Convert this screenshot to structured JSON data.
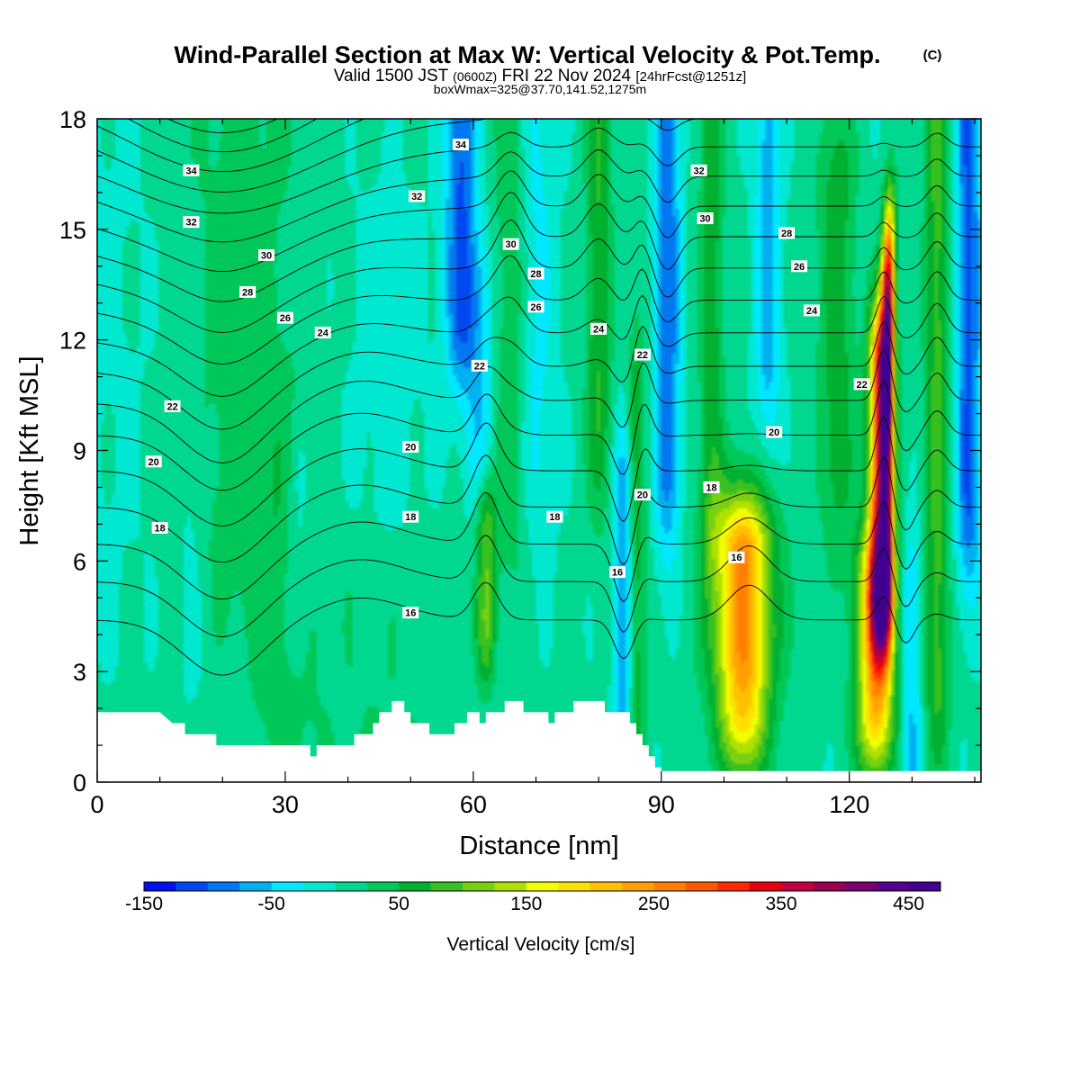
{
  "title": {
    "main": "Wind-Parallel Section at Max W: Vertical Velocity & Pot.Temp.",
    "copyright": "(C)",
    "valid_prefix": "Valid 1500 JST",
    "valid_z": "(0600Z)",
    "valid_date": "FRI 22 Nov 2024",
    "forecast": "[24hrFcst@1251z]",
    "box": "boxWmax=325@37.70,141.52,1275m"
  },
  "chart_data": {
    "type": "heatmap",
    "xlabel": "Distance [nm]",
    "ylabel": "Height [Kft MSL]",
    "xlim": [
      0,
      141
    ],
    "ylim": [
      0,
      18
    ],
    "xticks": [
      0,
      30,
      60,
      90,
      120
    ],
    "yticks": [
      0,
      3,
      6,
      9,
      12,
      15,
      18
    ],
    "grid": false,
    "colorbar": {
      "label": "Vertical Velocity [cm/s]",
      "min": -150,
      "max": 475,
      "step": 25,
      "tick_values": [
        -150,
        -50,
        50,
        150,
        250,
        350,
        450
      ],
      "tick_labels": [
        "-150",
        "-50",
        "50",
        "150",
        "250",
        "350",
        "450"
      ],
      "colors": [
        "#0010f0",
        "#0048f0",
        "#0078f0",
        "#00b0f0",
        "#00e8ff",
        "#00e8d0",
        "#00d890",
        "#00c858",
        "#00b030",
        "#38c020",
        "#78d010",
        "#b0e000",
        "#f0ff00",
        "#ffe000",
        "#ffc000",
        "#ffa000",
        "#ff8000",
        "#ff5800",
        "#ff2800",
        "#e80010",
        "#c00040",
        "#980050",
        "#780070",
        "#580090",
        "#400090"
      ]
    },
    "w_features": [
      {
        "x": 2,
        "z0": 9,
        "z1": 18,
        "w": -10,
        "sx": 10,
        "sz": 6
      },
      {
        "x": 23,
        "z0": 8,
        "z1": 18,
        "w": 30,
        "sx": 10,
        "sz": 5
      },
      {
        "x": 46,
        "z0": 6,
        "z1": 13,
        "w": -15,
        "sx": 7,
        "sz": 4
      },
      {
        "x": 30,
        "z0": 2,
        "z1": 8,
        "w": 25,
        "sx": 6,
        "sz": 3
      },
      {
        "x": 46,
        "z0": 1,
        "z1": 5,
        "w": 25,
        "sx": 10,
        "sz": 2
      },
      {
        "x": 15,
        "z0": 4,
        "z1": 8,
        "w": -20,
        "sx": 2,
        "sz": 2
      },
      {
        "x": 32,
        "z0": 5,
        "z1": 8,
        "w": -40,
        "sx": 2,
        "sz": 2
      },
      {
        "x": 58,
        "z0": 13,
        "z1": 18,
        "w": -110,
        "sx": 2.5,
        "sz": 2.5
      },
      {
        "x": 61,
        "z0": 9,
        "z1": 13,
        "w": -50,
        "sx": 2.2,
        "sz": 2
      },
      {
        "x": 62,
        "z0": 4,
        "z1": 7,
        "w": 90,
        "sx": 1.6,
        "sz": 1.5
      },
      {
        "x": 66,
        "z0": 8,
        "z1": 18,
        "w": 40,
        "sx": 3,
        "sz": 3
      },
      {
        "x": 70,
        "z0": 9,
        "z1": 18,
        "w": -40,
        "sx": 3,
        "sz": 3
      },
      {
        "x": 80,
        "z0": 10,
        "z1": 18,
        "w": 70,
        "sx": 2,
        "sz": 3
      },
      {
        "x": 84,
        "z0": 2,
        "z1": 8,
        "w": -80,
        "sx": 1.5,
        "sz": 2
      },
      {
        "x": 86,
        "z0": 2,
        "z1": 10,
        "w": 60,
        "sx": 1.5,
        "sz": 3
      },
      {
        "x": 91,
        "z0": 9,
        "z1": 18,
        "w": -100,
        "sx": 2,
        "sz": 3
      },
      {
        "x": 98,
        "z0": 8,
        "z1": 18,
        "w": 60,
        "sx": 2,
        "sz": 3
      },
      {
        "x": 103,
        "z0": 2,
        "z1": 6,
        "w": 180,
        "sx": 4,
        "sz": 2
      },
      {
        "x": 103,
        "z0": 4,
        "z1": 6,
        "w": 70,
        "sx": 6,
        "sz": 2
      },
      {
        "x": 107,
        "z0": 12,
        "z1": 18,
        "w": -70,
        "sx": 2,
        "sz": 3
      },
      {
        "x": 118,
        "z0": 9,
        "z1": 16,
        "w": 60,
        "sx": 3,
        "sz": 3
      },
      {
        "x": 124,
        "z0": 2,
        "z1": 5,
        "w": 200,
        "sx": 3,
        "sz": 2
      },
      {
        "x": 125,
        "z0": 5,
        "z1": 11,
        "w": 330,
        "sx": 1.8,
        "sz": 2
      },
      {
        "x": 126,
        "z0": 6,
        "z1": 9,
        "w": 200,
        "sx": 1.0,
        "sz": 2
      },
      {
        "x": 126,
        "z0": 11,
        "z1": 13.5,
        "w": 220,
        "sx": 1.0,
        "sz": 1.5
      },
      {
        "x": 126.5,
        "z0": 13,
        "z1": 15,
        "w": 150,
        "sx": 1.0,
        "sz": 1.5
      },
      {
        "x": 130,
        "z0": 0.5,
        "z1": 5,
        "w": -60,
        "sx": 1.5,
        "sz": 2
      },
      {
        "x": 134,
        "z0": 3,
        "z1": 18,
        "w": 80,
        "sx": 2,
        "sz": 3
      },
      {
        "x": 139,
        "z0": 8,
        "z1": 18,
        "w": -110,
        "sx": 2,
        "sz": 3
      }
    ],
    "terrain_kft": [
      [
        0,
        1.9
      ],
      [
        10,
        1.9
      ],
      [
        12,
        1.6
      ],
      [
        14,
        1.6
      ],
      [
        14,
        1.3
      ],
      [
        19,
        1.3
      ],
      [
        19,
        1.0
      ],
      [
        34,
        1.0
      ],
      [
        34,
        0.7
      ],
      [
        35,
        0.7
      ],
      [
        35,
        1.0
      ],
      [
        41,
        1.0
      ],
      [
        41,
        1.3
      ],
      [
        44,
        1.3
      ],
      [
        44,
        1.6
      ],
      [
        45,
        1.6
      ],
      [
        45,
        1.9
      ],
      [
        47,
        1.9
      ],
      [
        47,
        2.2
      ],
      [
        49,
        2.2
      ],
      [
        49,
        1.9
      ],
      [
        50,
        1.9
      ],
      [
        50,
        1.6
      ],
      [
        53,
        1.6
      ],
      [
        53,
        1.3
      ],
      [
        57,
        1.3
      ],
      [
        57,
        1.6
      ],
      [
        59,
        1.6
      ],
      [
        59,
        1.9
      ],
      [
        61,
        1.9
      ],
      [
        61,
        1.6
      ],
      [
        62,
        1.6
      ],
      [
        62,
        1.9
      ],
      [
        65,
        1.9
      ],
      [
        65,
        2.2
      ],
      [
        68,
        2.2
      ],
      [
        68,
        1.9
      ],
      [
        72,
        1.9
      ],
      [
        72,
        1.6
      ],
      [
        73,
        1.6
      ],
      [
        73,
        1.9
      ],
      [
        76,
        1.9
      ],
      [
        76,
        2.2
      ],
      [
        81,
        2.2
      ],
      [
        81,
        1.9
      ],
      [
        85,
        1.9
      ],
      [
        85,
        1.6
      ],
      [
        86,
        1.6
      ],
      [
        86,
        1.3
      ],
      [
        87,
        1.3
      ],
      [
        87,
        1.0
      ],
      [
        88,
        1.0
      ],
      [
        88,
        0.7
      ],
      [
        89,
        0.7
      ],
      [
        89,
        0.4
      ],
      [
        90,
        0.4
      ],
      [
        90,
        0.3
      ],
      [
        141,
        0.3
      ]
    ],
    "theta_contours": {
      "levels": [
        16,
        17,
        18,
        19,
        20,
        21,
        22,
        23,
        24,
        25,
        26,
        27,
        28,
        29,
        30,
        31,
        32,
        33,
        34,
        35,
        36
      ],
      "labels": [
        {
          "text": "34",
          "x": 15,
          "z": 16.6
        },
        {
          "text": "32",
          "x": 15,
          "z": 15.2
        },
        {
          "text": "30",
          "x": 27,
          "z": 14.3
        },
        {
          "text": "28",
          "x": 24,
          "z": 13.3
        },
        {
          "text": "26",
          "x": 30,
          "z": 12.6
        },
        {
          "text": "24",
          "x": 36,
          "z": 12.2
        },
        {
          "text": "22",
          "x": 12,
          "z": 10.2
        },
        {
          "text": "20",
          "x": 9,
          "z": 8.7
        },
        {
          "text": "18",
          "x": 10,
          "z": 6.9
        },
        {
          "text": "34",
          "x": 58,
          "z": 17.3
        },
        {
          "text": "32",
          "x": 51,
          "z": 15.9
        },
        {
          "text": "30",
          "x": 66,
          "z": 14.6
        },
        {
          "text": "28",
          "x": 70,
          "z": 13.8
        },
        {
          "text": "26",
          "x": 70,
          "z": 12.9
        },
        {
          "text": "22",
          "x": 61,
          "z": 11.3
        },
        {
          "text": "20",
          "x": 50,
          "z": 9.1
        },
        {
          "text": "18",
          "x": 50,
          "z": 7.2
        },
        {
          "text": "16",
          "x": 50,
          "z": 4.6
        },
        {
          "text": "18",
          "x": 73,
          "z": 7.2
        },
        {
          "text": "24",
          "x": 80,
          "z": 12.3
        },
        {
          "text": "22",
          "x": 87,
          "z": 11.6
        },
        {
          "text": "16",
          "x": 83,
          "z": 5.7
        },
        {
          "text": "20",
          "x": 87,
          "z": 7.8
        },
        {
          "text": "32",
          "x": 96,
          "z": 16.6
        },
        {
          "text": "30",
          "x": 97,
          "z": 15.3
        },
        {
          "text": "28",
          "x": 110,
          "z": 14.9
        },
        {
          "text": "26",
          "x": 112,
          "z": 14.0
        },
        {
          "text": "24",
          "x": 114,
          "z": 12.8
        },
        {
          "text": "20",
          "x": 108,
          "z": 9.5
        },
        {
          "text": "18",
          "x": 98,
          "z": 8.0
        },
        {
          "text": "16",
          "x": 102,
          "z": 6.1
        },
        {
          "text": "22",
          "x": 122,
          "z": 10.8
        }
      ]
    }
  }
}
